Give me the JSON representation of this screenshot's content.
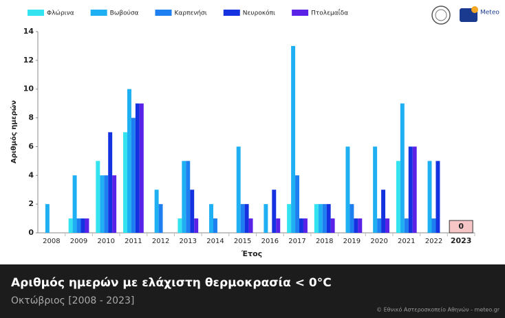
{
  "chart_data": {
    "type": "bar",
    "title": "Αριθμός ημερών με ελάχιστη θερμοκρασία < 0°C",
    "subtitle": "Οκτώβριος [2008 - 2023]",
    "credit": "© Εθνικό Αστεροσκοπείο Αθηνών - meteo.gr",
    "logo_text": "Meteo",
    "x_label": "Έτος",
    "y_label": "Αριθμός ημερών",
    "categories": [
      "2008",
      "2009",
      "2010",
      "2011",
      "2012",
      "2013",
      "2014",
      "2015",
      "2016",
      "2017",
      "2018",
      "2019",
      "2020",
      "2021",
      "2022",
      "2023"
    ],
    "series": [
      {
        "name": "Φλώρινα",
        "color": "#33e3ef",
        "values": [
          0,
          1,
          5,
          7,
          0,
          1,
          0,
          0,
          0,
          2,
          2,
          0,
          0,
          5,
          0,
          0
        ]
      },
      {
        "name": "Βωβούσα",
        "color": "#1eb0f2",
        "values": [
          2,
          4,
          4,
          10,
          3,
          5,
          2,
          6,
          2,
          13,
          2,
          6,
          6,
          9,
          5,
          0
        ]
      },
      {
        "name": "Καρπενήσι",
        "color": "#1e7ff0",
        "values": [
          0,
          1,
          4,
          8,
          2,
          5,
          1,
          2,
          0,
          4,
          2,
          2,
          1,
          1,
          1,
          0
        ]
      },
      {
        "name": "Νευροκόπι",
        "color": "#1432e0",
        "values": [
          0,
          1,
          7,
          9,
          0,
          3,
          0,
          2,
          3,
          1,
          2,
          1,
          3,
          6,
          5,
          0
        ]
      },
      {
        "name": "Πτολεμαΐδα",
        "color": "#5a22e6",
        "values": [
          0,
          1,
          4,
          9,
          0,
          1,
          0,
          1,
          1,
          1,
          1,
          1,
          1,
          6,
          0,
          0
        ]
      }
    ],
    "annotations": [
      {
        "x": "2023",
        "value": 0
      }
    ],
    "ylim": [
      0,
      14
    ],
    "yticks": [
      0,
      2,
      4,
      6,
      8,
      10,
      12,
      14
    ],
    "grid": false
  }
}
